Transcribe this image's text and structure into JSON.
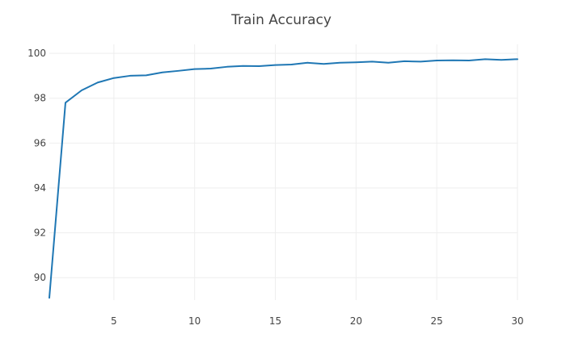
{
  "chart_data": {
    "type": "line",
    "title": "Train Accuracy",
    "xlabel": "",
    "ylabel": "",
    "xlim": [
      1,
      30
    ],
    "ylim": [
      89,
      100.4
    ],
    "x_ticks": [
      5,
      10,
      15,
      20,
      25,
      30
    ],
    "y_ticks": [
      90,
      92,
      94,
      96,
      98,
      100
    ],
    "grid": true,
    "legend": "none",
    "series": [
      {
        "color": "#1f77b4",
        "x": [
          1,
          2,
          3,
          4,
          5,
          6,
          7,
          8,
          9,
          10,
          11,
          12,
          13,
          14,
          15,
          16,
          17,
          18,
          19,
          20,
          21,
          22,
          23,
          24,
          25,
          26,
          27,
          28,
          29,
          30
        ],
        "values": [
          89.1,
          97.8,
          98.35,
          98.7,
          98.9,
          99.0,
          99.02,
          99.15,
          99.22,
          99.3,
          99.32,
          99.4,
          99.44,
          99.43,
          99.48,
          99.5,
          99.58,
          99.53,
          99.58,
          99.6,
          99.63,
          99.58,
          99.65,
          99.63,
          99.68,
          99.69,
          99.68,
          99.74,
          99.71,
          99.74
        ]
      }
    ]
  }
}
